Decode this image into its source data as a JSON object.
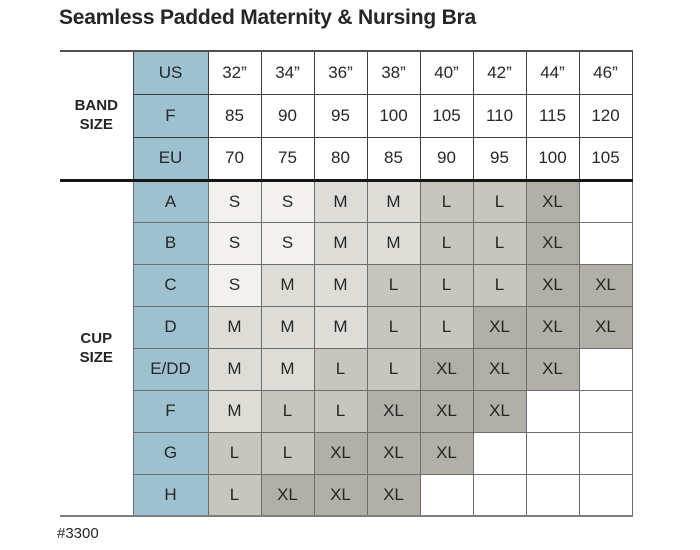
{
  "title": "Seamless Padded Maternity & Nursing Bra",
  "footnote": "#3300",
  "colors": {
    "row_label_teal": "#9dc1cf",
    "size_s_bg": "#f2f1ee",
    "size_m_bg": "#dedcd7",
    "size_l_bg": "#c8c5bf",
    "size_xl_bg": "#b2afa8"
  },
  "chart_data": {
    "type": "table",
    "title": "Seamless Padded Maternity & Nursing Bra",
    "footnote": "#3300",
    "band": {
      "label": "BAND\nSIZE",
      "rows": [
        {
          "label": "US",
          "values": [
            "32”",
            "34”",
            "36”",
            "38”",
            "40”",
            "42”",
            "44”",
            "46”"
          ]
        },
        {
          "label": "F",
          "values": [
            "85",
            "90",
            "95",
            "100",
            "105",
            "110",
            "115",
            "120"
          ]
        },
        {
          "label": "EU",
          "values": [
            "70",
            "75",
            "80",
            "85",
            "90",
            "95",
            "100",
            "105"
          ]
        }
      ]
    },
    "cup": {
      "label": "CUP\nSIZE",
      "rows": [
        {
          "label": "A",
          "values": [
            "S",
            "S",
            "M",
            "M",
            "L",
            "L",
            "XL",
            ""
          ]
        },
        {
          "label": "B",
          "values": [
            "S",
            "S",
            "M",
            "M",
            "L",
            "L",
            "XL",
            ""
          ]
        },
        {
          "label": "C",
          "values": [
            "S",
            "M",
            "M",
            "L",
            "L",
            "L",
            "XL",
            "XL"
          ]
        },
        {
          "label": "D",
          "values": [
            "M",
            "M",
            "M",
            "L",
            "L",
            "XL",
            "XL",
            "XL"
          ]
        },
        {
          "label": "E/DD",
          "values": [
            "M",
            "M",
            "L",
            "L",
            "XL",
            "XL",
            "XL",
            ""
          ]
        },
        {
          "label": "F",
          "values": [
            "M",
            "L",
            "L",
            "XL",
            "XL",
            "XL",
            "",
            ""
          ]
        },
        {
          "label": "G",
          "values": [
            "L",
            "L",
            "XL",
            "XL",
            "XL",
            "",
            "",
            ""
          ]
        },
        {
          "label": "H",
          "values": [
            "L",
            "XL",
            "XL",
            "XL",
            "",
            "",
            "",
            ""
          ]
        }
      ]
    }
  }
}
